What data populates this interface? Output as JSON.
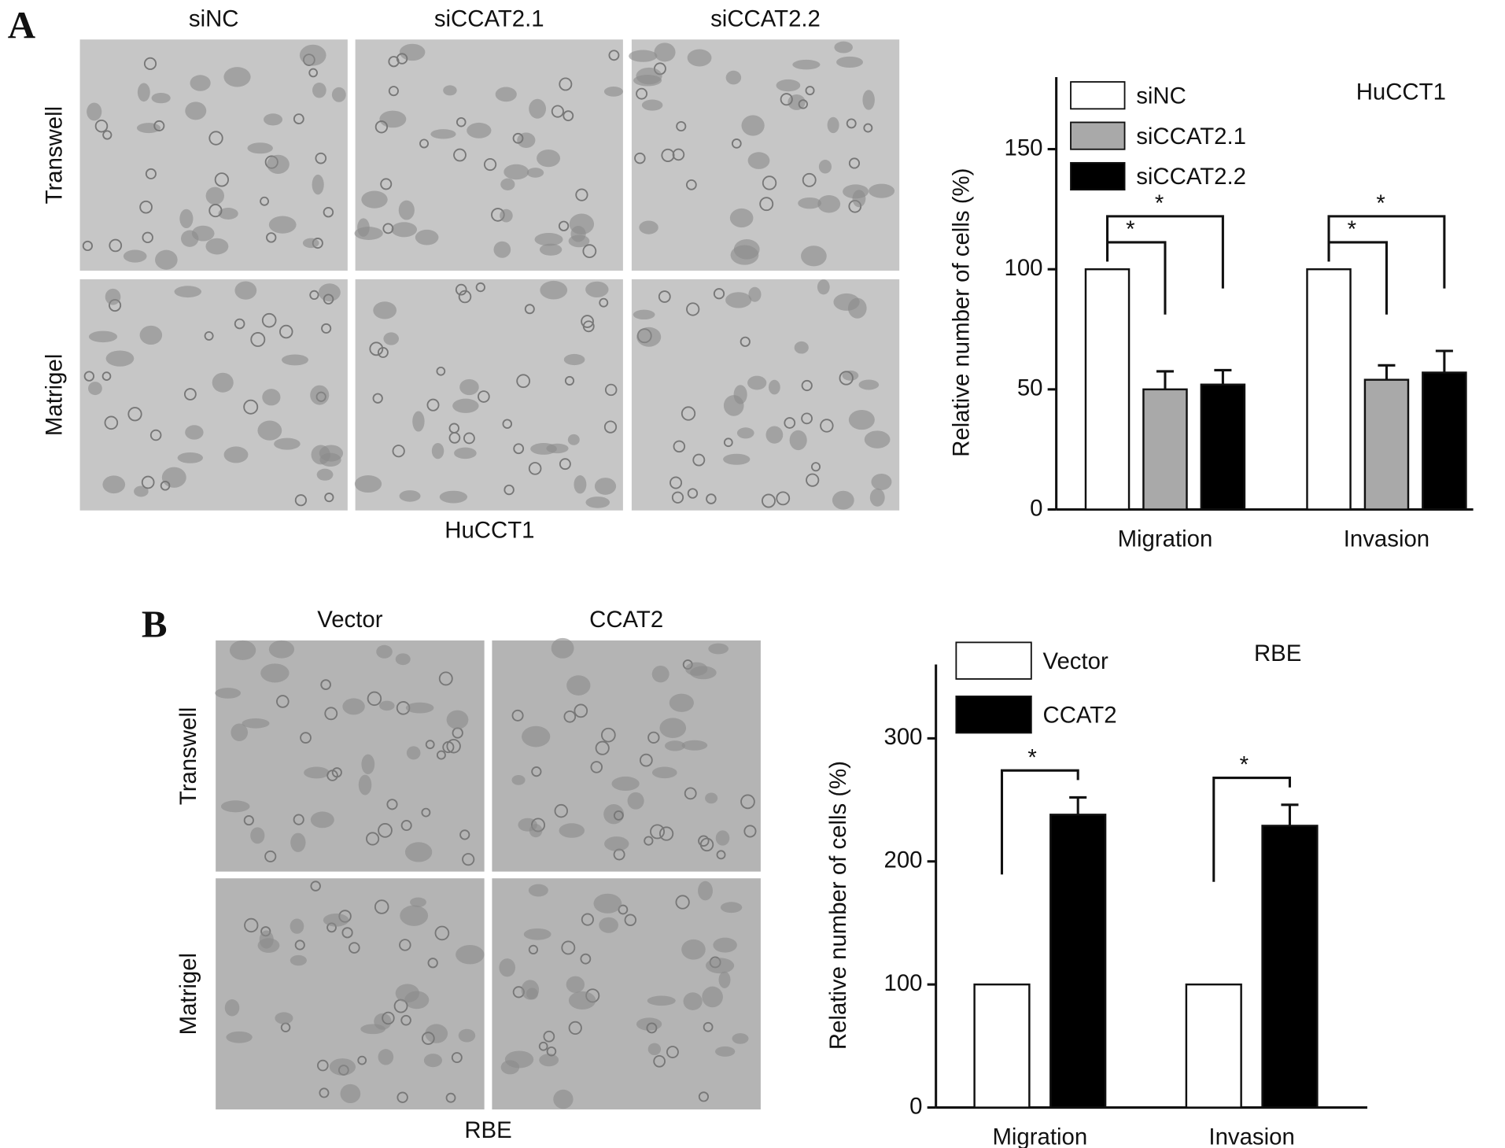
{
  "panel_labels": [
    "A",
    "B"
  ],
  "micrographs": [
    {
      "columns": [
        "siNC",
        "siCCAT2.1",
        "siCCAT2.2"
      ],
      "rows": [
        "Transwell",
        "Matrigel"
      ],
      "caption": "HuCCT1"
    },
    {
      "columns": [
        "Vector",
        "CCAT2"
      ],
      "rows": [
        "Transwell",
        "Matrigel"
      ],
      "caption": "RBE"
    }
  ],
  "chart_data": [
    {
      "type": "bar",
      "ylabel": "Relative number of cells (%)",
      "annotation": "HuCCT1",
      "categories": [
        "Migration",
        "Invasion"
      ],
      "series": [
        {
          "name": "siNC",
          "color": "#ffffff",
          "values": [
            100,
            100
          ],
          "errors": [
            0,
            0
          ]
        },
        {
          "name": "siCCAT2.1",
          "color": "#a9a9a9",
          "values": [
            50,
            54
          ],
          "errors": [
            7.5,
            6
          ]
        },
        {
          "name": "siCCAT2.2",
          "color": "#000000",
          "values": [
            52,
            57
          ],
          "errors": [
            6,
            9
          ]
        }
      ],
      "significance": [
        [
          "*",
          "*"
        ],
        [
          "*",
          "*"
        ]
      ],
      "ylim": [
        0,
        180
      ],
      "yticks": [
        0,
        50,
        100,
        150
      ],
      "legend": "top-left"
    },
    {
      "type": "bar",
      "ylabel": "Relative number of cells (%)",
      "annotation": "RBE",
      "categories": [
        "Migration",
        "Invasion"
      ],
      "series": [
        {
          "name": "Vector",
          "color": "#ffffff",
          "values": [
            100,
            100
          ],
          "errors": [
            0,
            0
          ]
        },
        {
          "name": "CCAT2",
          "color": "#000000",
          "values": [
            238,
            229
          ],
          "errors": [
            14,
            17
          ]
        }
      ],
      "significance": [
        [
          "*"
        ],
        [
          "*"
        ]
      ],
      "ylim": [
        0,
        360
      ],
      "yticks": [
        0,
        100,
        200,
        300
      ],
      "legend": "top-left"
    }
  ]
}
